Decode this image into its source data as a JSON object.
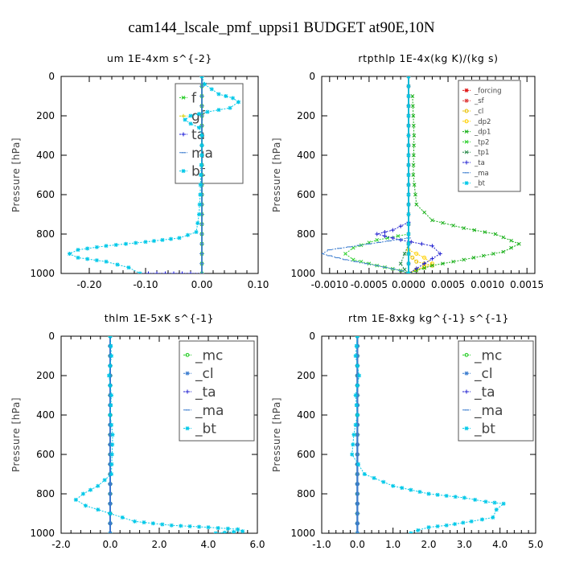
{
  "title": "cam144_lscale_pmf_uppsi1  BUDGET at90E,10N",
  "chart_data": [
    {
      "type": "line",
      "title": "um  1E-4xm s^{-2}",
      "ylabel": "Pressure [hPa]",
      "xlim": [
        -0.25,
        0.1
      ],
      "ylim": [
        1000,
        0
      ],
      "xticks": [
        -0.2,
        -0.1,
        0.0,
        0.1
      ],
      "xtick_labels": [
        "-0.20",
        "-0.10",
        "0.00",
        "0.10"
      ],
      "yticks": [
        0,
        200,
        400,
        600,
        800,
        1000
      ],
      "ytick_labels": [
        "0",
        "200",
        "400",
        "600",
        "800",
        "1000"
      ],
      "legend": "top-right",
      "legend_font": 17,
      "series": [
        {
          "name": "f",
          "color": "#22cc22",
          "marker": "x",
          "x": [
            0,
            0,
            0,
            0,
            0,
            0,
            0,
            0,
            0,
            0,
            0,
            0,
            0,
            0,
            0,
            0,
            0,
            0,
            0,
            0,
            0
          ],
          "y": [
            0,
            50,
            100,
            150,
            200,
            250,
            300,
            350,
            400,
            450,
            500,
            550,
            600,
            650,
            700,
            750,
            800,
            850,
            900,
            950,
            1000
          ]
        },
        {
          "name": "gf",
          "color": "#d6d000",
          "marker": "+",
          "x": [
            0,
            0,
            0,
            0,
            0
          ],
          "y": [
            100,
            200,
            300,
            400,
            500
          ]
        },
        {
          "name": "ta",
          "color": "#1a1ad8",
          "marker": "+",
          "x": [
            -0.11,
            -0.08,
            -0.05,
            -0.02,
            0.0
          ],
          "y": [
            1000,
            1000,
            1000,
            1000,
            1000
          ]
        },
        {
          "name": "ma",
          "color": "#3f7fd0",
          "marker": "-",
          "x": [
            0,
            0
          ],
          "y": [
            0,
            1000
          ]
        },
        {
          "name": "bt",
          "color": "#00c8e8",
          "marker": "*",
          "x": [
            0.0,
            0.005,
            0.03,
            0.055,
            0.065,
            0.05,
            0.01,
            -0.02,
            -0.03,
            -0.02,
            -0.005,
            0.0,
            0.0,
            -0.002,
            -0.003,
            -0.005,
            -0.01,
            -0.04,
            -0.1,
            -0.17,
            -0.22,
            -0.235,
            -0.22,
            -0.17,
            -0.13,
            -0.11
          ],
          "y": [
            0,
            40,
            90,
            110,
            130,
            160,
            180,
            200,
            220,
            240,
            260,
            300,
            400,
            500,
            600,
            700,
            790,
            820,
            840,
            860,
            880,
            900,
            920,
            940,
            970,
            1000
          ]
        }
      ]
    },
    {
      "type": "line",
      "title": "rtpthlp  1E-4x(kg K)/(kg s)",
      "ylabel": "Pressure [hPa]",
      "xlim": [
        -0.0011,
        0.0016
      ],
      "ylim": [
        1000,
        0
      ],
      "xticks": [
        -0.001,
        -0.0005,
        0.0,
        0.0005,
        0.001,
        0.0015
      ],
      "xtick_labels": [
        "-0.0010",
        "-0.0005",
        "0.0000",
        "0.0005",
        "0.0010",
        "0.0015"
      ],
      "yticks": [
        0,
        200,
        400,
        600,
        800,
        1000
      ],
      "ytick_labels": [
        "0",
        "200",
        "400",
        "600",
        "800",
        "1000"
      ],
      "legend": "top-right",
      "legend_font": 8.5,
      "series": [
        {
          "name": "_forcing",
          "color": "#e01a1a",
          "marker": "*",
          "x": [
            0,
            0
          ],
          "y": [
            0,
            1000
          ]
        },
        {
          "name": "_sf",
          "color": "#e04040",
          "marker": "*",
          "x": [
            0,
            0
          ],
          "y": [
            0,
            1000
          ]
        },
        {
          "name": "_cl",
          "color": "#e8c000",
          "marker": "o",
          "x": [
            0,
            5e-05,
            0.0001,
            0.0003,
            0.0001,
            0.0
          ],
          "y": [
            900,
            920,
            940,
            960,
            980,
            1000
          ]
        },
        {
          "name": "_dp2",
          "color": "#ffd000",
          "marker": "o",
          "x": [
            0,
            0.0002,
            0.0003,
            0.0001,
            0
          ],
          "y": [
            880,
            920,
            950,
            980,
            1000
          ]
        },
        {
          "name": "_dp1",
          "color": "#1ab01a",
          "marker": "x",
          "x": [
            5e-05,
            7e-05,
            6e-05,
            0.0001,
            0.0003,
            0.0007,
            0.0011,
            0.0014,
            0.0012,
            0.0007,
            0.0003,
            0.0001,
            0.0
          ],
          "y": [
            100,
            300,
            500,
            650,
            730,
            770,
            800,
            850,
            890,
            930,
            960,
            985,
            1000
          ]
        },
        {
          "name": "_tp2",
          "color": "#30d030",
          "marker": "x",
          "x": [
            0,
            -0.0004,
            -0.0007,
            -0.0008,
            -0.0007,
            -0.0004,
            -0.0001,
            0
          ],
          "y": [
            800,
            830,
            870,
            900,
            930,
            960,
            985,
            1000
          ]
        },
        {
          "name": "_tp1",
          "color": "#2a8a4a",
          "marker": "x",
          "x": [
            0,
            -5e-05,
            -0.0001,
            -5e-05,
            0
          ],
          "y": [
            850,
            900,
            950,
            980,
            1000
          ]
        },
        {
          "name": "_ta",
          "color": "#2020d0",
          "marker": "+",
          "x": [
            0,
            -0.0002,
            -0.0004,
            -0.0001,
            0.0003,
            0.0004,
            0.0002,
            0
          ],
          "y": [
            740,
            780,
            800,
            830,
            860,
            900,
            950,
            1000
          ]
        },
        {
          "name": "_ma",
          "color": "#3f7fd0",
          "marker": "-",
          "x": [
            0,
            -0.0005,
            -0.001,
            -0.0011,
            -0.0008,
            -0.0004,
            -0.0001,
            0
          ],
          "y": [
            820,
            850,
            880,
            900,
            930,
            960,
            985,
            1000
          ]
        },
        {
          "name": "_bt",
          "color": "#00c8e8",
          "marker": "*",
          "x": [
            0,
            0
          ],
          "y": [
            0,
            1000
          ]
        }
      ]
    },
    {
      "type": "line",
      "title": "thlm  1E-5xK s^{-1}",
      "ylabel": "Pressure [hPa]",
      "xlim": [
        -2.0,
        6.0
      ],
      "ylim": [
        1000,
        0
      ],
      "xticks": [
        -2.0,
        0.0,
        2.0,
        4.0,
        6.0
      ],
      "xtick_labels": [
        "-2.0",
        "0.0",
        "2.0",
        "4.0",
        "6.0"
      ],
      "yticks": [
        0,
        200,
        400,
        600,
        800,
        1000
      ],
      "ytick_labels": [
        "0",
        "200",
        "400",
        "600",
        "800",
        "1000"
      ],
      "legend": "top-right",
      "legend_font": 17,
      "series": [
        {
          "name": "_mc",
          "color": "#22cc22",
          "marker": "o",
          "x": [
            0,
            0
          ],
          "y": [
            0,
            1000
          ]
        },
        {
          "name": "_cl",
          "color": "#3f7fd0",
          "marker": "*",
          "x": [
            0,
            0
          ],
          "y": [
            0,
            1000
          ]
        },
        {
          "name": "_ta",
          "color": "#2020d0",
          "marker": "+",
          "x": [
            0.0,
            0.0
          ],
          "y": [
            0,
            1000
          ]
        },
        {
          "name": "_ma",
          "color": "#3f7fd0",
          "marker": "-",
          "x": [
            0,
            0
          ],
          "y": [
            0,
            1000
          ]
        },
        {
          "name": "_bt",
          "color": "#00c8e8",
          "marker": "*",
          "x": [
            0.0,
            0.05,
            -0.05,
            0.05,
            0.0,
            0.1,
            0.05,
            -0.5,
            -1.1,
            -1.4,
            -1.0,
            -0.5,
            0.0,
            0.5,
            1.0,
            2.5,
            4.0,
            5.2,
            5.4,
            4.3
          ],
          "y": [
            0,
            100,
            200,
            300,
            400,
            500,
            700,
            760,
            800,
            830,
            860,
            880,
            900,
            920,
            940,
            960,
            970,
            980,
            990,
            1000
          ]
        }
      ]
    },
    {
      "type": "line",
      "title": "rtm  1E-8xkg kg^{-1} s^{-1}",
      "ylabel": "Pressure [hPa]",
      "xlim": [
        -1.0,
        5.0
      ],
      "ylim": [
        1000,
        0
      ],
      "xticks": [
        -1.0,
        0.0,
        1.0,
        2.0,
        3.0,
        4.0,
        5.0
      ],
      "xtick_labels": [
        "-1.0",
        "0.0",
        "1.0",
        "2.0",
        "3.0",
        "4.0",
        "5.0"
      ],
      "yticks": [
        0,
        200,
        400,
        600,
        800,
        1000
      ],
      "ytick_labels": [
        "0",
        "200",
        "400",
        "600",
        "800",
        "1000"
      ],
      "legend": "top-right",
      "legend_font": 17,
      "series": [
        {
          "name": "_mc",
          "color": "#22cc22",
          "marker": "o",
          "x": [
            0,
            0
          ],
          "y": [
            0,
            1000
          ]
        },
        {
          "name": "_cl",
          "color": "#3f7fd0",
          "marker": "*",
          "x": [
            0,
            0
          ],
          "y": [
            0,
            1000
          ]
        },
        {
          "name": "_ta",
          "color": "#2020d0",
          "marker": "+",
          "x": [
            0,
            0
          ],
          "y": [
            0,
            1000
          ]
        },
        {
          "name": "_ma",
          "color": "#3f7fd0",
          "marker": "-",
          "x": [
            0,
            0
          ],
          "y": [
            0,
            1000
          ]
        },
        {
          "name": "_bt",
          "color": "#00c8e8",
          "marker": "*",
          "x": [
            0.0,
            -0.05,
            0.05,
            -0.05,
            0.0,
            -0.1,
            -0.15,
            0.2,
            1.0,
            2.0,
            3.0,
            3.6,
            4.1,
            3.9,
            3.8,
            3.2,
            2.5,
            2.0,
            1.7,
            1.5
          ],
          "y": [
            0,
            100,
            200,
            300,
            400,
            500,
            600,
            700,
            760,
            800,
            820,
            840,
            850,
            880,
            920,
            940,
            960,
            970,
            985,
            1000
          ]
        }
      ]
    }
  ]
}
